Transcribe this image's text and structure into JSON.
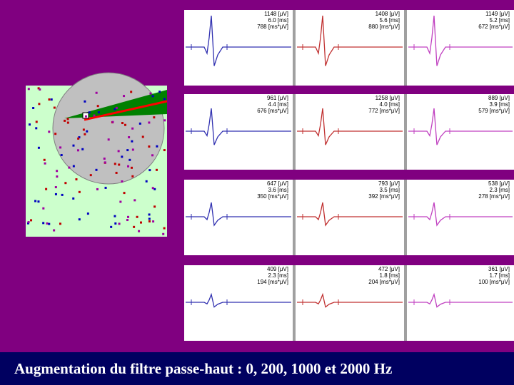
{
  "caption": "Augmentation du filtre passe-haut : 0, 200, 1000 et 2000 Hz",
  "panels": [
    [
      [
        "1148 [μV]",
        "6.0 [ms]",
        "788 [ms*μV]"
      ],
      [
        "1408 [μV]",
        "5.6 [ms]",
        "880 [ms*μV]"
      ],
      [
        "1149 [μV]",
        "5.2 [ms]",
        "672 [ms*μV]"
      ]
    ],
    [
      [
        "961 [μV]",
        "4.4 [ms]",
        "676 [ms*μV]"
      ],
      [
        "1258 [μV]",
        "4.0 [ms]",
        "772 [ms*μV]"
      ],
      [
        "889 [μV]",
        "3.9 [ms]",
        "579 [ms*μV]"
      ]
    ],
    [
      [
        "647 [μV]",
        "3.6 [ms]",
        "350 [ms*μV]"
      ],
      [
        "793 [μV]",
        "3.5 [ms]",
        "392 [ms*μV]"
      ],
      [
        "538 [μV]",
        "2.3 [ms]",
        "278 [ms*μV]"
      ]
    ],
    [
      [
        "409 [μV]",
        "2.3 [ms]",
        "194 [ms*μV]"
      ],
      [
        "472 [μV]",
        "1.8 [ms]",
        "204 [ms*μV]"
      ],
      [
        "361 [μV]",
        "1.7 [ms]",
        "100 [ms*μV]"
      ]
    ]
  ]
}
